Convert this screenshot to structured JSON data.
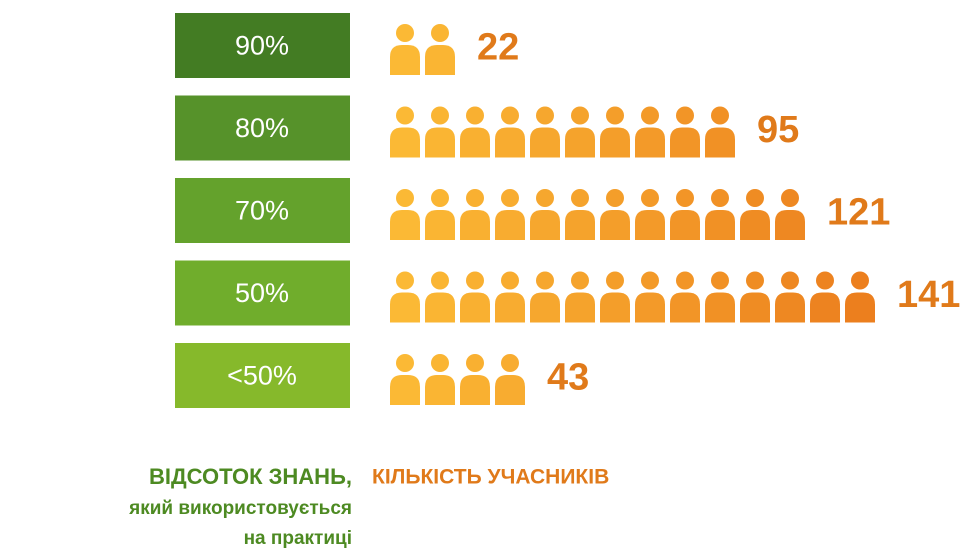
{
  "chart_data": {
    "type": "pictogram",
    "categories": [
      "90%",
      "80%",
      "70%",
      "50%",
      "<50%"
    ],
    "values": [
      22,
      95,
      121,
      141,
      43
    ],
    "category_colors": [
      "#437c23",
      "#56922a",
      "#64a22c",
      "#70ad2c",
      "#86b92b"
    ],
    "icon_colors": [
      "#fbb935",
      "#ec7f1e"
    ],
    "value_color": "#e07a1a",
    "category_label": [
      "ВІДСОТОК ЗНАНЬ,",
      "який використовується",
      "на практиці"
    ],
    "value_label": "КІЛЬКІСТЬ УЧАСНИКІВ"
  }
}
